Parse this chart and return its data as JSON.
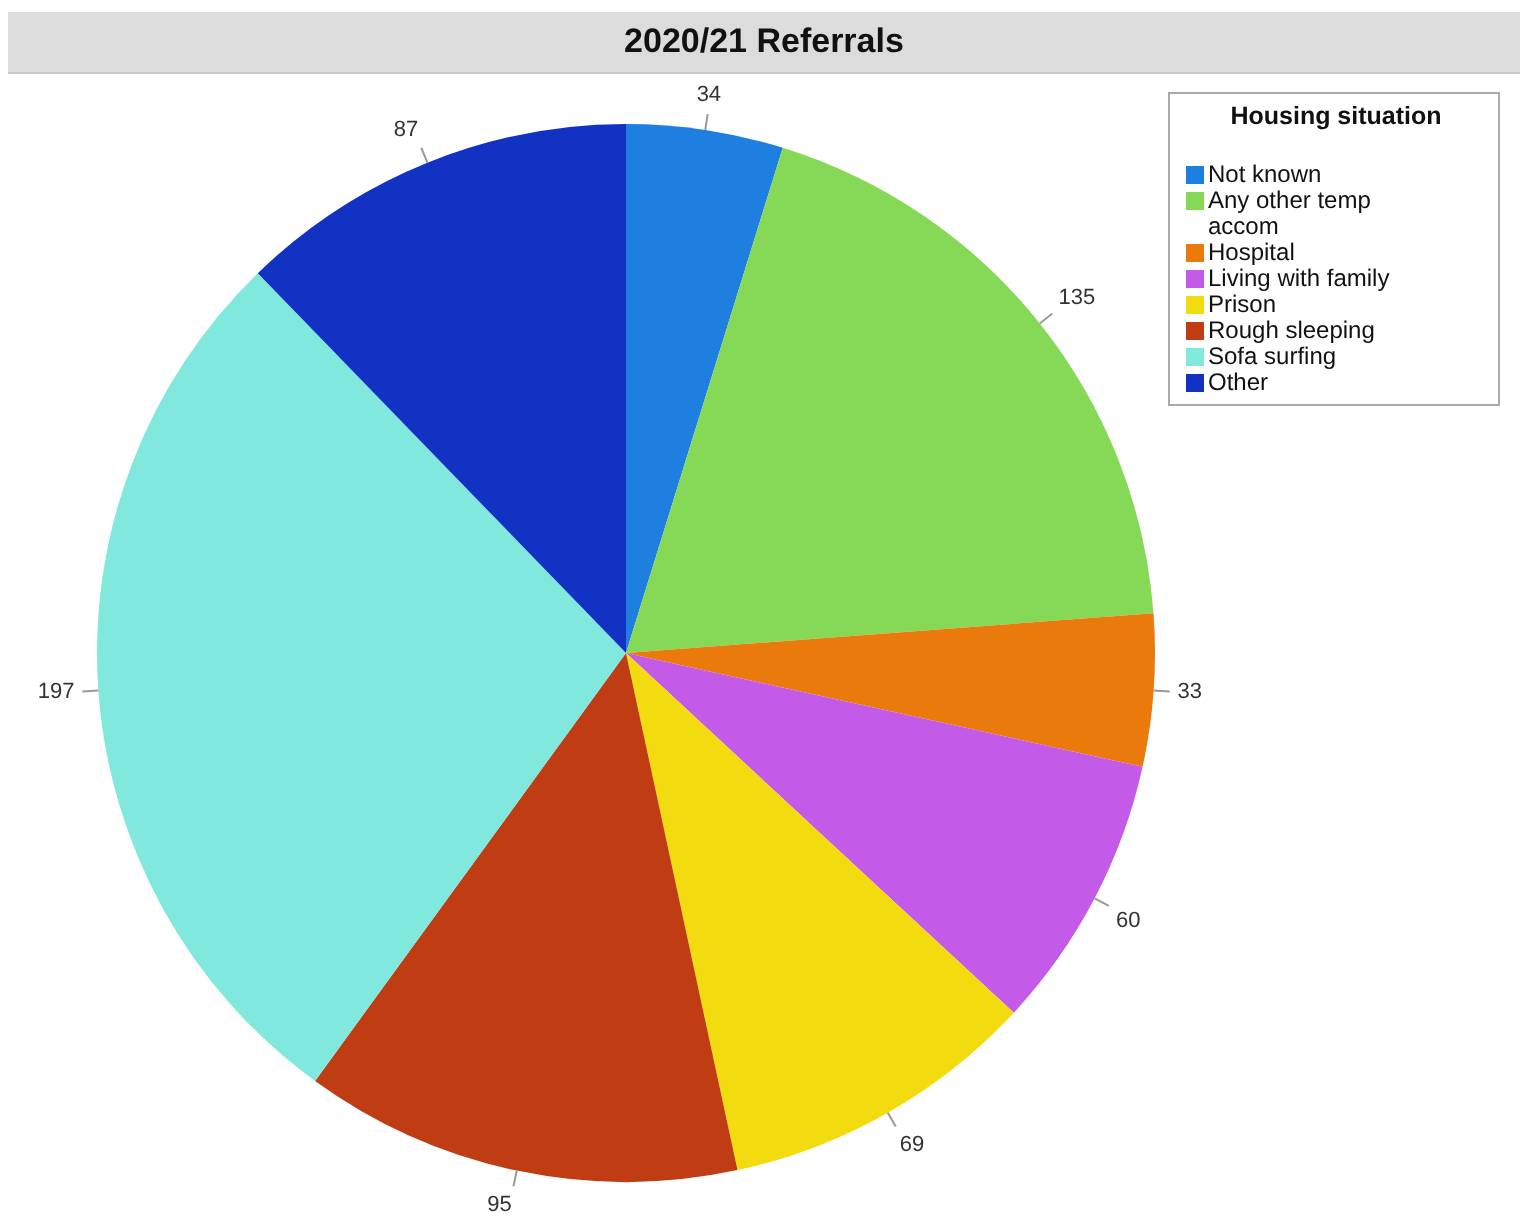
{
  "chart_data": {
    "type": "pie",
    "title": "2020/21 Referrals",
    "legend_title": "Housing situation",
    "legend": "top right",
    "data_labels": true,
    "categories": [
      "Not known",
      "Any other temp accom",
      "Hospital",
      "Living with family",
      "Prison",
      "Rough sleeping",
      "Sofa surfing",
      "Other"
    ],
    "values": [
      34,
      135,
      33,
      60,
      69,
      95,
      197,
      87
    ],
    "colors": [
      "#1f7fe0",
      "#86d957",
      "#ea7a0c",
      "#c45be8",
      "#f2dc10",
      "#c03c12",
      "#80e8dc",
      "#1232c4"
    ]
  }
}
